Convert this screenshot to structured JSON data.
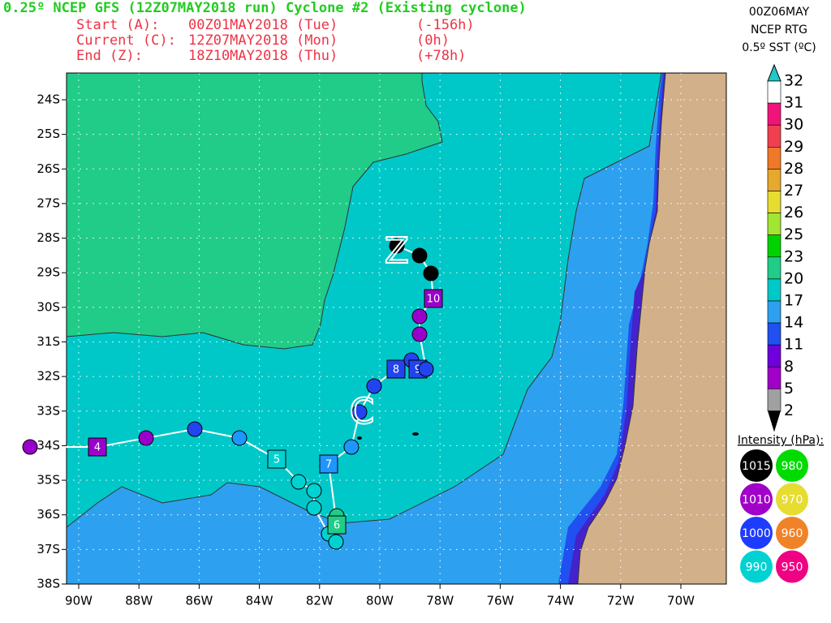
{
  "header": {
    "title": "0.25º NCEP GFS (12Z07MAY2018 run) Cyclone #2 (Existing cyclone)",
    "lines": [
      [
        "Start (A):",
        "00Z01MAY2018 (Tue)",
        "(-156h)"
      ],
      [
        "Current (C):",
        "12Z07MAY2018 (Mon)",
        "(0h)"
      ],
      [
        "End (Z):",
        "18Z10MAY2018 (Thu)",
        "(+78h)"
      ]
    ]
  },
  "sst": {
    "date": "00Z06MAY",
    "source": "NCEP RTG",
    "title": "0.5º SST (ºC)",
    "levels": [
      "32",
      "31",
      "30",
      "29",
      "28",
      "27",
      "26",
      "25",
      "23",
      "20",
      "17",
      "14",
      "11",
      "8",
      "5",
      "2"
    ]
  },
  "intensity": {
    "title": "Intensity (hPa):",
    "items": [
      "1015",
      "980",
      "1010",
      "970",
      "1000",
      "960",
      "990",
      "950"
    ]
  },
  "axes": {
    "lat": [
      "24S",
      "25S",
      "26S",
      "27S",
      "28S",
      "29S",
      "30S",
      "31S",
      "32S",
      "33S",
      "34S",
      "35S",
      "36S",
      "37S",
      "38S"
    ],
    "lon": [
      "90W",
      "88W",
      "86W",
      "84W",
      "82W",
      "80W",
      "78W",
      "76W",
      "74W",
      "72W",
      "70W"
    ]
  },
  "track": {
    "letters": [
      "C",
      "Z"
    ],
    "labels": [
      "4",
      "5",
      "6",
      "7",
      "8",
      "9",
      "10"
    ]
  }
}
